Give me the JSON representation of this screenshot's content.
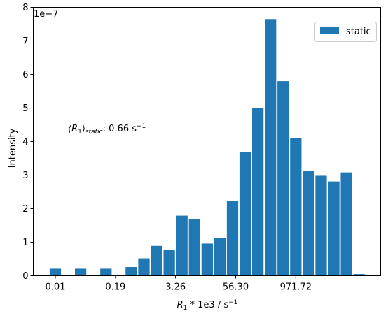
{
  "chart_data": {
    "type": "bar",
    "title": "",
    "xlabel": "R₁ * 1e3 / s⁻¹",
    "xlabel_parts": {
      "var": "R",
      "sub": "1",
      "mid": " * 1e3 / s",
      "sup": "−1"
    },
    "ylabel": "Intensity",
    "y_offset_text": "1e−7",
    "y_multiplier": 1e-07,
    "ylim": [
      0,
      8
    ],
    "y_ticks": [
      0,
      1,
      2,
      3,
      4,
      5,
      6,
      7,
      8
    ],
    "x_tick_labels": [
      "0.01",
      "0.19",
      "3.26",
      "56.30",
      "971.72"
    ],
    "x_tick_bins": [
      0,
      4.75,
      9.5,
      14.25,
      19
    ],
    "legend": {
      "placement": "top-right",
      "entries": [
        "static"
      ]
    },
    "annotation": {
      "text": "⟨R₁⟩static: 0.66 s⁻¹",
      "parts": {
        "lead": "⟨R",
        "sub1": "1",
        "mid": "⟩",
        "sub2": "static",
        "value": ": 0.66 s",
        "sup": "−1"
      }
    },
    "series": [
      {
        "name": "static",
        "color": "#1f77b4",
        "values": [
          0.21,
          0.0,
          0.21,
          0.0,
          0.21,
          0.0,
          0.26,
          0.52,
          0.89,
          0.76,
          1.79,
          1.68,
          0.96,
          1.13,
          2.22,
          3.69,
          5.0,
          7.65,
          5.8,
          4.11,
          3.12,
          2.98,
          2.81,
          3.08,
          0.05
        ]
      }
    ],
    "grid": false
  }
}
